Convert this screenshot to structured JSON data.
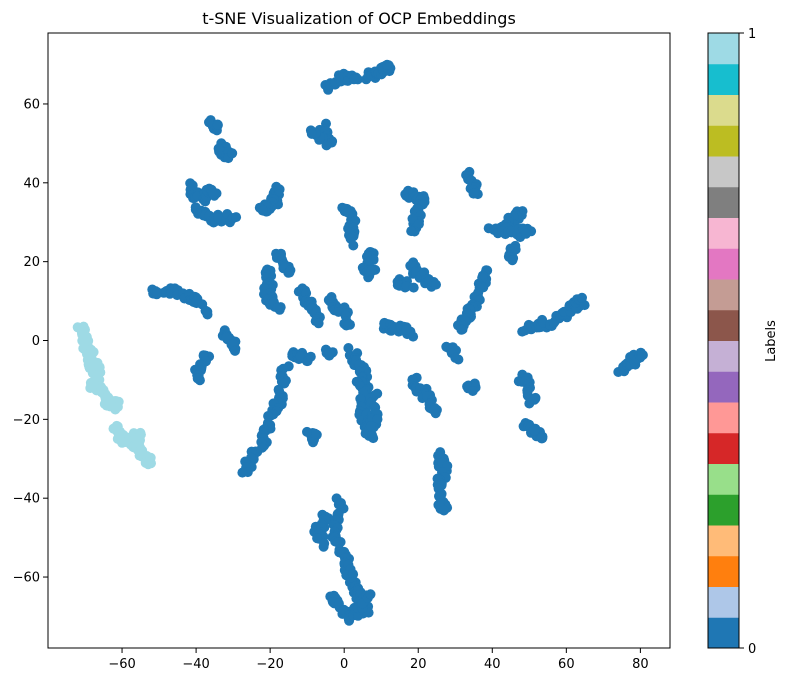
{
  "chart_data": {
    "type": "scatter",
    "title": "t-SNE Visualization of OCP Embeddings",
    "xlabel": "",
    "ylabel": "",
    "xlim": [
      -80,
      88
    ],
    "ylim": [
      -78,
      78
    ],
    "x_ticks": [
      -60,
      -40,
      -20,
      0,
      20,
      40,
      60,
      80
    ],
    "y_ticks": [
      -60,
      -40,
      -20,
      0,
      20,
      40,
      60
    ],
    "grid": false,
    "marker": "circle",
    "colormap": "tab20",
    "colorbar": {
      "label": "Labels",
      "ticks": [
        "0",
        "1"
      ],
      "colors": [
        "#1f77b4",
        "#aec7e8",
        "#ff7f0e",
        "#ffbb78",
        "#2ca02c",
        "#98df8a",
        "#d62728",
        "#ff9896",
        "#9467bd",
        "#c5b0d5",
        "#8c564b",
        "#c49c94",
        "#e377c2",
        "#f7b6d2",
        "#7f7f7f",
        "#c7c7c7",
        "#bcbd22",
        "#dbdb8d",
        "#17becf",
        "#9edae5"
      ]
    },
    "series": [
      {
        "label_value": 0,
        "color": "#1f77b4",
        "paths": [
          [
            [
              -4,
              64
            ],
            [
              -2,
              66
            ],
            [
              1,
              67
            ],
            [
              3,
              66
            ]
          ],
          [
            [
              6,
              67
            ],
            [
              9,
              67
            ],
            [
              11,
              69
            ],
            [
              12,
              70
            ]
          ],
          [
            [
              -36,
              55
            ],
            [
              -35,
              54
            ]
          ],
          [
            [
              -6,
              54
            ],
            [
              -5,
              52
            ],
            [
              -4,
              50
            ],
            [
              -9,
              53
            ]
          ],
          [
            [
              -33,
              49
            ],
            [
              -33,
              47
            ],
            [
              -31,
              47
            ]
          ],
          [
            [
              -42,
              39
            ],
            [
              -39,
              36
            ],
            [
              -37,
              37
            ],
            [
              -35,
              38
            ]
          ],
          [
            [
              -40,
              33
            ],
            [
              -37,
              31
            ],
            [
              -34,
              31
            ],
            [
              -29,
              31
            ]
          ],
          [
            [
              -18,
              39
            ],
            [
              -19,
              35
            ],
            [
              -21,
              34
            ],
            [
              -22,
              33
            ]
          ],
          [
            [
              0,
              34
            ],
            [
              2,
              32
            ],
            [
              2,
              28
            ],
            [
              2,
              25
            ]
          ],
          [
            [
              17,
              37
            ],
            [
              19,
              37
            ],
            [
              21,
              36
            ],
            [
              20,
              32
            ],
            [
              19,
              28
            ]
          ],
          [
            [
              34,
              42
            ],
            [
              35,
              40
            ],
            [
              36,
              37
            ]
          ],
          [
            [
              48,
              33
            ],
            [
              46,
              31
            ],
            [
              44,
              29
            ],
            [
              42,
              27
            ]
          ],
          [
            [
              40,
              28
            ],
            [
              46,
              27
            ],
            [
              50,
              28
            ]
          ],
          [
            [
              46,
              23
            ],
            [
              45,
              21
            ]
          ],
          [
            [
              8,
              23
            ],
            [
              7,
              20
            ],
            [
              6,
              17
            ],
            [
              8,
              17
            ]
          ],
          [
            [
              -21,
              18
            ],
            [
              -20,
              15
            ],
            [
              -21,
              12
            ],
            [
              -20,
              10
            ],
            [
              -18,
              8
            ]
          ],
          [
            [
              -18,
              22
            ],
            [
              -16,
              20
            ],
            [
              -15,
              17
            ]
          ],
          [
            [
              -12,
              13
            ],
            [
              -10,
              10
            ],
            [
              -8,
              8
            ],
            [
              -7,
              5
            ]
          ],
          [
            [
              -4,
              10
            ],
            [
              -2,
              8
            ],
            [
              0,
              7
            ],
            [
              1,
              4
            ]
          ],
          [
            [
              -52,
              12
            ],
            [
              -48,
              13
            ],
            [
              -44,
              12
            ],
            [
              -40,
              10
            ],
            [
              -37,
              7
            ]
          ],
          [
            [
              18,
              19
            ],
            [
              20,
              17
            ],
            [
              22,
              16
            ],
            [
              25,
              14
            ]
          ],
          [
            [
              14,
              15
            ],
            [
              18,
              14
            ]
          ],
          [
            [
              39,
              17
            ],
            [
              37,
              15
            ],
            [
              36,
              11
            ],
            [
              35,
              8
            ],
            [
              33,
              6
            ],
            [
              31,
              3
            ]
          ],
          [
            [
              11,
              4
            ],
            [
              13,
              3
            ],
            [
              16,
              3
            ],
            [
              18,
              2
            ]
          ],
          [
            [
              28,
              -2
            ],
            [
              30,
              -4
            ]
          ],
          [
            [
              49,
              3
            ],
            [
              53,
              4
            ],
            [
              57,
              5
            ],
            [
              60,
              7
            ],
            [
              62,
              9
            ],
            [
              65,
              10
            ]
          ],
          [
            [
              75,
              -7
            ],
            [
              77,
              -6
            ],
            [
              79,
              -4
            ],
            [
              80,
              -3
            ]
          ],
          [
            [
              -33,
              2
            ],
            [
              -31,
              0
            ],
            [
              -30,
              -2
            ]
          ],
          [
            [
              -37,
              -4
            ],
            [
              -39,
              -7
            ],
            [
              -40,
              -10
            ]
          ],
          [
            [
              -14,
              -4
            ],
            [
              -12,
              -4
            ],
            [
              -10,
              -5
            ]
          ],
          [
            [
              -5,
              -3
            ],
            [
              -3,
              -4
            ]
          ],
          [
            [
              2,
              -3
            ],
            [
              4,
              -6
            ],
            [
              5,
              -8
            ],
            [
              6,
              -12
            ]
          ],
          [
            [
              -16,
              -7
            ],
            [
              -17,
              -12
            ],
            [
              -18,
              -17
            ],
            [
              -20,
              -21
            ],
            [
              -22,
              -25
            ],
            [
              -24,
              -29
            ],
            [
              -27,
              -33
            ]
          ],
          [
            [
              4,
              -10
            ],
            [
              5,
              -14
            ],
            [
              5,
              -18
            ],
            [
              6,
              -22
            ],
            [
              7,
              -25
            ]
          ],
          [
            [
              8,
              -14
            ],
            [
              8,
              -18
            ],
            [
              8,
              -22
            ]
          ],
          [
            [
              19,
              -10
            ],
            [
              21,
              -13
            ],
            [
              23,
              -16
            ],
            [
              25,
              -18
            ]
          ],
          [
            [
              34,
              -11
            ],
            [
              35,
              -12
            ]
          ],
          [
            [
              48,
              -9
            ],
            [
              50,
              -12
            ],
            [
              51,
              -16
            ]
          ],
          [
            [
              49,
              -21
            ],
            [
              51,
              -23
            ],
            [
              53,
              -24
            ]
          ],
          [
            [
              25,
              -29
            ],
            [
              27,
              -32
            ],
            [
              26,
              -36
            ],
            [
              26,
              -40
            ],
            [
              27,
              -43
            ]
          ],
          [
            [
              -8,
              -25
            ],
            [
              -9,
              -24
            ]
          ],
          [
            [
              -1,
              -41
            ],
            [
              -2,
              -46
            ],
            [
              -3,
              -50
            ],
            [
              0,
              -54
            ],
            [
              1,
              -58
            ],
            [
              3,
              -62
            ],
            [
              4,
              -66
            ],
            [
              6,
              -69
            ]
          ],
          [
            [
              -5,
              -45
            ],
            [
              -7,
              -48
            ],
            [
              -6,
              -52
            ]
          ],
          [
            [
              -4,
              -65
            ],
            [
              -2,
              -67
            ],
            [
              1,
              -70
            ],
            [
              4,
              -68
            ],
            [
              7,
              -65
            ]
          ]
        ]
      },
      {
        "label_value": 1,
        "color": "#9edae5",
        "paths": [
          [
            [
              -71,
              3
            ],
            [
              -70,
              0
            ],
            [
              -69,
              -3
            ],
            [
              -68,
              -6
            ],
            [
              -67,
              -9
            ],
            [
              -66,
              -12
            ],
            [
              -64,
              -15
            ],
            [
              -61,
              -17
            ]
          ],
          [
            [
              -69,
              -6
            ],
            [
              -66,
              -7
            ]
          ],
          [
            [
              -68,
              -11
            ],
            [
              -66,
              -13
            ]
          ],
          [
            [
              -62,
              -21
            ],
            [
              -61,
              -24
            ],
            [
              -58,
              -26
            ],
            [
              -56,
              -27
            ],
            [
              -54,
              -29
            ],
            [
              -52,
              -31
            ]
          ],
          [
            [
              -56,
              -24
            ],
            [
              -55,
              -26
            ]
          ]
        ]
      }
    ]
  }
}
